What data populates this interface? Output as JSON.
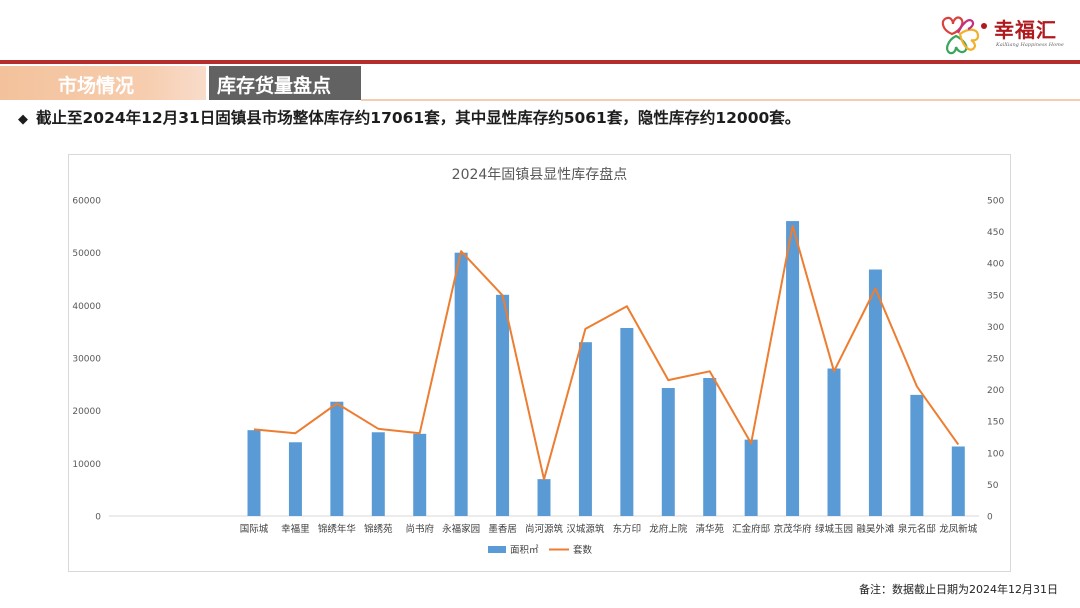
{
  "brand": {
    "name": "幸福汇",
    "tagline": "KaiXiang Happiness Home"
  },
  "tabs": {
    "section": "市场情况",
    "topic": "库存货量盘点"
  },
  "headline": {
    "bullet": "◆",
    "text": "截止至2024年12月31日固镇县市场整体库存约17061套，其中显性库存约5061套，隐性库存约12000套。"
  },
  "footnote": "备注：数据截止日期为2024年12月31日",
  "colors": {
    "bar": "#5b9bd5",
    "line": "#ed7d31",
    "accent_red": "#b52e2e",
    "tab_dark": "#626262",
    "tab_light": "#f3c29c"
  },
  "chart_data": {
    "type": "bar",
    "title": "2024年固镇县显性库存盘点",
    "categories": [
      "国际城",
      "幸福里",
      "锦绣年华",
      "锦绣苑",
      "尚书府",
      "永福家园",
      "墨香居",
      "尚河源筑",
      "汉城源筑",
      "东方印",
      "龙府上院",
      "清华苑",
      "汇金府邸",
      "京茂华府",
      "绿城玉园",
      "融昊外滩",
      "泉元名邸",
      "龙凤新城"
    ],
    "series": [
      {
        "name": "面积㎡",
        "type": "bar",
        "axis": "left",
        "values": [
          16300,
          14000,
          21700,
          15900,
          15600,
          50000,
          42000,
          7000,
          33000,
          35700,
          24300,
          26200,
          14500,
          56000,
          28000,
          46800,
          23000,
          13200
        ]
      },
      {
        "name": "套数",
        "type": "line",
        "axis": "right",
        "values": [
          137,
          131,
          178,
          138,
          131,
          419,
          349,
          58,
          296,
          332,
          215,
          229,
          115,
          459,
          229,
          360,
          205,
          113
        ]
      }
    ],
    "y_left": {
      "min": 0,
      "max": 60000,
      "ticks": [
        0,
        10000,
        20000,
        30000,
        40000,
        50000,
        60000
      ]
    },
    "y_right": {
      "min": 0,
      "max": 500,
      "ticks": [
        0,
        50,
        100,
        150,
        200,
        250,
        300,
        350,
        400,
        450,
        500
      ]
    },
    "empty_leading_slots": 3,
    "grid": false,
    "legend_position": "bottom-center"
  }
}
